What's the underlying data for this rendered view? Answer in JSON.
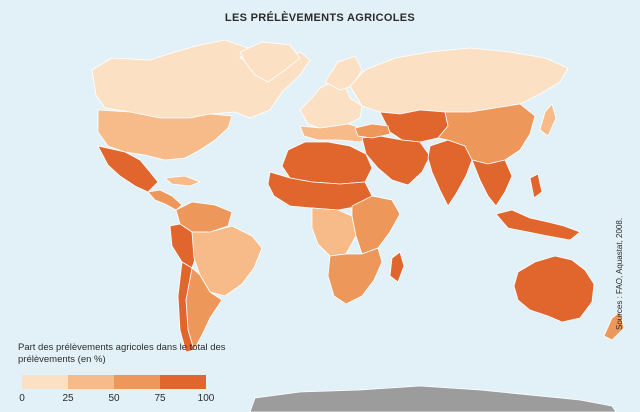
{
  "map": {
    "title": "LES PRÉLÈVEMENTS AGRICOLES",
    "source": "Sources : FAO, Aquastat, 2008.",
    "ocean_color": "#e2f1f8",
    "antarctica_color": "#9c9c9c",
    "border_color": "#ffffff"
  },
  "legend": {
    "title": "Part des prélèvements agricoles dans le total des prélèvements (en %)",
    "classes": [
      {
        "range": "0–25",
        "color": "#fbe0c4"
      },
      {
        "range": "25–50",
        "color": "#f6bb88"
      },
      {
        "range": "50–75",
        "color": "#ee975a"
      },
      {
        "range": "75–100",
        "color": "#e0662e"
      }
    ],
    "ticks": [
      "0",
      "25",
      "50",
      "75",
      "100"
    ]
  },
  "regions": [
    {
      "name": "canada-greenland",
      "class": 0
    },
    {
      "name": "usa",
      "class": 1
    },
    {
      "name": "mexico",
      "class": 3
    },
    {
      "name": "central-america",
      "class": 2
    },
    {
      "name": "venezuela-colombia",
      "class": 2
    },
    {
      "name": "peru-ecuador",
      "class": 3
    },
    {
      "name": "brazil",
      "class": 1
    },
    {
      "name": "argentina-south",
      "class": 2
    },
    {
      "name": "chile",
      "class": 3
    },
    {
      "name": "europe-west",
      "class": 0
    },
    {
      "name": "europe-south",
      "class": 1
    },
    {
      "name": "russia",
      "class": 0
    },
    {
      "name": "central-asia",
      "class": 3
    },
    {
      "name": "middle-east",
      "class": 3
    },
    {
      "name": "north-africa",
      "class": 3
    },
    {
      "name": "sahel",
      "class": 3
    },
    {
      "name": "central-africa",
      "class": 1
    },
    {
      "name": "east-africa",
      "class": 2
    },
    {
      "name": "southern-africa",
      "class": 2
    },
    {
      "name": "madagascar",
      "class": 3
    },
    {
      "name": "india",
      "class": 3
    },
    {
      "name": "china",
      "class": 2
    },
    {
      "name": "southeast-asia",
      "class": 3
    },
    {
      "name": "indonesia",
      "class": 3
    },
    {
      "name": "australia",
      "class": 3
    },
    {
      "name": "new-zealand",
      "class": 2
    },
    {
      "name": "japan",
      "class": 1
    },
    {
      "name": "antarctica",
      "class": -1
    }
  ]
}
